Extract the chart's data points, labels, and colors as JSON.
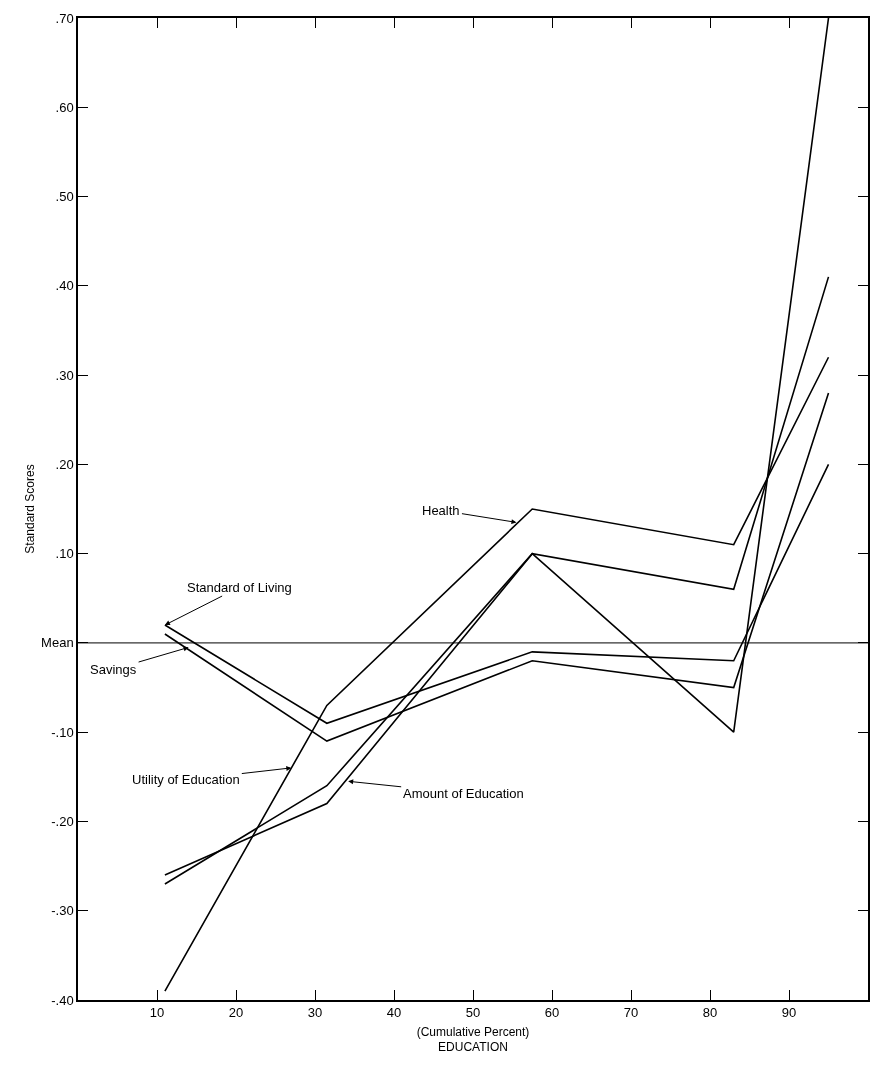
{
  "chart_data": {
    "type": "line",
    "xlabel": "(Cumulative Percent)\nEDUCATION",
    "ylabel": "Standard Scores",
    "x": [
      11,
      31.5,
      57.5,
      83,
      95
    ],
    "series": [
      {
        "color": "#000000",
        "values": [
          0.02,
          -0.09,
          -0.01,
          -0.02,
          0.2
        ]
      },
      {
        "color": "#000000",
        "values": [
          0.01,
          -0.11,
          -0.02,
          -0.05,
          0.28
        ]
      },
      {
        "color": "#000000",
        "values": [
          -0.39,
          -0.07,
          0.15,
          0.11,
          0.32
        ]
      },
      {
        "color": "#000000",
        "values": [
          -0.27,
          -0.16,
          0.1,
          -0.1,
          0.7
        ]
      },
      {
        "color": "#000000",
        "values": [
          -0.26,
          -0.18,
          0.1,
          0.06,
          0.41
        ]
      }
    ],
    "xlim": [
      0,
      100
    ],
    "xticks": [
      10,
      20,
      30,
      40,
      50,
      60,
      70,
      80,
      90
    ],
    "ylim": [
      -0.4,
      0.7
    ],
    "yticks": [
      {
        "value": -0.4,
        "label": "-.40"
      },
      {
        "value": -0.3,
        "label": "-.30"
      },
      {
        "value": -0.2,
        "label": "-.20"
      },
      {
        "value": -0.1,
        "label": "-.10"
      },
      {
        "value": 0,
        "label": "Mean"
      },
      {
        "value": 0.1,
        "label": ".10"
      },
      {
        "value": 0.2,
        "label": ".20"
      },
      {
        "value": 0.3,
        "label": ".30"
      },
      {
        "value": 0.4,
        "label": ".40"
      },
      {
        "value": 0.5,
        "label": ".50"
      },
      {
        "value": 0.6,
        "label": ".60"
      },
      {
        "value": 0.7,
        "label": ".70"
      }
    ],
    "ref_lines": [
      {
        "axis": "y",
        "value": 0,
        "color": "#000000"
      }
    ],
    "annotations": [
      {
        "text": "Health",
        "x": 55.5,
        "y": 0.135
      },
      {
        "text": "Standard of Living",
        "x": 11,
        "y": 0.02
      },
      {
        "text": "Savings",
        "x": 14,
        "y": -0.005
      },
      {
        "text": "Utility of Education",
        "x": 27,
        "y": -0.14
      },
      {
        "text": "Amount of Education",
        "x": 34.2,
        "y": -0.155
      }
    ],
    "marker": "none",
    "line_style": "solid"
  }
}
